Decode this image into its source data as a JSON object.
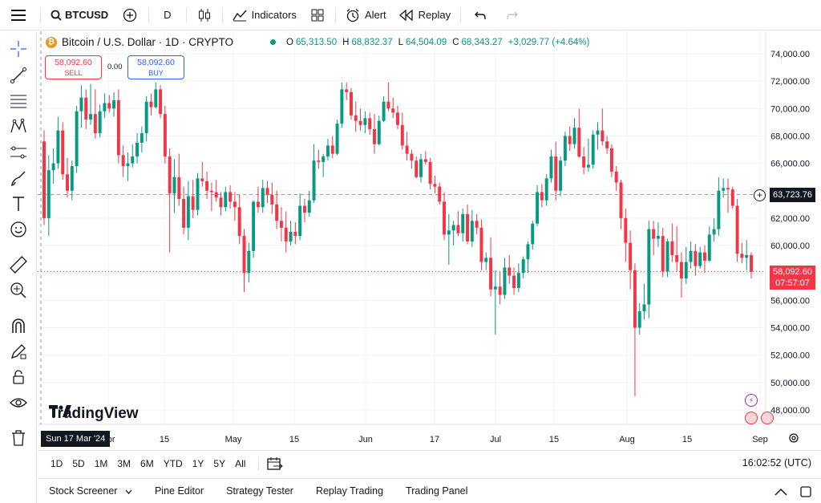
{
  "toolbar": {
    "symbol": "BTCUSD",
    "interval": "D",
    "indicators_label": "Indicators",
    "alert_label": "Alert",
    "replay_label": "Replay"
  },
  "legend": {
    "title": "Bitcoin / U.S. Dollar · 1D · CRYPTO",
    "open_key": "O",
    "open": "65,313.50",
    "high_key": "H",
    "high": "68,832.37",
    "low_key": "L",
    "low": "64,504.09",
    "close_key": "C",
    "close": "68,343.27",
    "change": "+3,029.77 (+4.64%)"
  },
  "trade": {
    "sell_price": "58,092.60",
    "sell_label": "SELL",
    "spread": "0.00",
    "buy_price": "58,092.60",
    "buy_label": "BUY"
  },
  "logo_text": "TradingView",
  "price_axis": {
    "labels": [
      "74,000.00",
      "72,000.00",
      "70,000.00",
      "68,000.00",
      "66,000.00",
      "64,000.00",
      "62,000.00",
      "60,000.00",
      "58,000.00",
      "56,000.00",
      "54,000.00",
      "52,000.00",
      "50,000.00",
      "48,000.00"
    ],
    "crosshair_price": "63,723.76",
    "last_price": "58,092.60",
    "countdown": "07:57:07"
  },
  "time_axis": {
    "labels": [
      "Apr",
      "15",
      "May",
      "15",
      "Jun",
      "17",
      "Jul",
      "15",
      "Aug",
      "15",
      "Sep"
    ],
    "crosshair_date": "Sun 17 Mar '24"
  },
  "timeframes": [
    "1D",
    "5D",
    "1M",
    "3M",
    "6M",
    "YTD",
    "1Y",
    "5Y",
    "All"
  ],
  "clock": "16:02:52 (UTC)",
  "bottom_tabs": [
    "Stock Screener",
    "Pine Editor",
    "Strategy Tester",
    "Replay Trading",
    "Trading Panel"
  ],
  "colors": {
    "up": "#089981",
    "down": "#f23645",
    "accent": "#2962ff"
  },
  "chart_data": {
    "type": "candlestick",
    "title": "Bitcoin / U.S. Dollar · 1D · CRYPTO",
    "ylim": [
      47000,
      75500
    ],
    "x_tick_labels": [
      "Apr",
      "15",
      "May",
      "15",
      "Jun",
      "17",
      "Jul",
      "15",
      "Aug",
      "15",
      "Sep"
    ],
    "candles": [
      [
        67600,
        68400,
        61500,
        62000
      ],
      [
        62000,
        66600,
        60700,
        65500
      ],
      [
        65500,
        67100,
        64500,
        66000
      ],
      [
        66000,
        69400,
        65600,
        68400
      ],
      [
        68400,
        69000,
        64800,
        65200
      ],
      [
        65200,
        66400,
        63500,
        64000
      ],
      [
        64000,
        66200,
        63300,
        65800
      ],
      [
        65800,
        70200,
        65300,
        69800
      ],
      [
        69800,
        71700,
        68600,
        70800
      ],
      [
        70800,
        71400,
        68500,
        69200
      ],
      [
        69200,
        71800,
        68800,
        69600
      ],
      [
        69600,
        71400,
        67800,
        68200
      ],
      [
        68200,
        70300,
        67900,
        69800
      ],
      [
        69800,
        71100,
        69300,
        70400
      ],
      [
        70400,
        71000,
        69700,
        70000
      ],
      [
        70000,
        71200,
        69400,
        70600
      ],
      [
        70600,
        71400,
        66000,
        66600
      ],
      [
        66600,
        67300,
        65000,
        65800
      ],
      [
        65800,
        66800,
        64700,
        66000
      ],
      [
        66000,
        67400,
        65700,
        66500
      ],
      [
        66500,
        68200,
        66000,
        67500
      ],
      [
        67500,
        68700,
        66800,
        68200
      ],
      [
        68200,
        70900,
        67600,
        70500
      ],
      [
        70500,
        71100,
        69500,
        70100
      ],
      [
        70100,
        71900,
        70000,
        71400
      ],
      [
        71400,
        71700,
        69300,
        69600
      ],
      [
        69600,
        70200,
        66000,
        66500
      ],
      [
        66500,
        67100,
        59500,
        63800
      ],
      [
        63800,
        66300,
        62400,
        65000
      ],
      [
        65000,
        66700,
        62900,
        63400
      ],
      [
        63400,
        64300,
        60800,
        61300
      ],
      [
        61300,
        64700,
        60400,
        63600
      ],
      [
        63600,
        64800,
        62000,
        62600
      ],
      [
        62600,
        65300,
        62200,
        64900
      ],
      [
        64900,
        66100,
        64300,
        64700
      ],
      [
        64700,
        65400,
        63400,
        64000
      ],
      [
        64000,
        64600,
        62500,
        63900
      ],
      [
        63900,
        64800,
        63200,
        63500
      ],
      [
        63500,
        63900,
        62200,
        62800
      ],
      [
        62800,
        64300,
        62500,
        63900
      ],
      [
        63900,
        64400,
        62700,
        63200
      ],
      [
        63200,
        63900,
        61800,
        62800
      ],
      [
        62800,
        63700,
        60100,
        60700
      ],
      [
        60700,
        61200,
        56600,
        58000
      ],
      [
        58000,
        60200,
        57300,
        59600
      ],
      [
        59600,
        63300,
        59100,
        63200
      ],
      [
        63200,
        64300,
        62400,
        62800
      ],
      [
        62800,
        64800,
        62400,
        64200
      ],
      [
        64200,
        64700,
        63100,
        63700
      ],
      [
        63700,
        64600,
        62300,
        63000
      ],
      [
        63000,
        64000,
        61200,
        61800
      ],
      [
        61800,
        62800,
        60300,
        61300
      ],
      [
        61300,
        62500,
        59500,
        60300
      ],
      [
        60300,
        61800,
        60000,
        61000
      ],
      [
        61000,
        61700,
        60100,
        60700
      ],
      [
        60700,
        63800,
        60400,
        62900
      ],
      [
        62900,
        63400,
        61700,
        62400
      ],
      [
        62400,
        64000,
        62100,
        63300
      ],
      [
        63300,
        67400,
        63100,
        66200
      ],
      [
        66200,
        67000,
        65600,
        66100
      ],
      [
        66100,
        66700,
        65000,
        66500
      ],
      [
        66500,
        67800,
        66200,
        67300
      ],
      [
        67300,
        68000,
        66400,
        66700
      ],
      [
        66700,
        69200,
        66600,
        68900
      ],
      [
        68900,
        71900,
        68600,
        71400
      ],
      [
        71400,
        71900,
        70600,
        71200
      ],
      [
        71200,
        71500,
        69200,
        69500
      ],
      [
        69500,
        70500,
        68300,
        69100
      ],
      [
        69100,
        70000,
        68400,
        68800
      ],
      [
        68800,
        69800,
        68200,
        69300
      ],
      [
        69300,
        69700,
        68100,
        68500
      ],
      [
        68500,
        69600,
        66700,
        67400
      ],
      [
        67400,
        69500,
        67300,
        69100
      ],
      [
        69100,
        70900,
        69000,
        70500
      ],
      [
        70500,
        71900,
        69800,
        70000
      ],
      [
        70000,
        70800,
        69300,
        69700
      ],
      [
        69700,
        70200,
        68500,
        68800
      ],
      [
        68800,
        69700,
        67000,
        67300
      ],
      [
        67300,
        68300,
        66200,
        66700
      ],
      [
        66700,
        67000,
        65600,
        66200
      ],
      [
        66200,
        66500,
        64900,
        65000
      ],
      [
        65000,
        66700,
        64600,
        66300
      ],
      [
        66300,
        66900,
        65900,
        66100
      ],
      [
        66100,
        66400,
        64100,
        64500
      ],
      [
        64500,
        65100,
        63800,
        64300
      ],
      [
        64300,
        64600,
        63000,
        63200
      ],
      [
        63200,
        63900,
        60400,
        60800
      ],
      [
        60800,
        62300,
        58600,
        61100
      ],
      [
        61100,
        61800,
        60000,
        61500
      ],
      [
        61500,
        62500,
        60700,
        60900
      ],
      [
        60900,
        62700,
        60300,
        62300
      ],
      [
        62300,
        63000,
        60100,
        60300
      ],
      [
        60300,
        62600,
        59900,
        61800
      ],
      [
        61800,
        62300,
        60800,
        61300
      ],
      [
        61300,
        61900,
        58200,
        58800
      ],
      [
        58800,
        59500,
        58200,
        59100
      ],
      [
        59100,
        60600,
        56300,
        56800
      ],
      [
        56800,
        58200,
        53500,
        57000
      ],
      [
        57000,
        58100,
        55700,
        56400
      ],
      [
        56400,
        59100,
        56100,
        58400
      ],
      [
        58400,
        59300,
        57200,
        57800
      ],
      [
        57800,
        58400,
        56400,
        56900
      ],
      [
        56900,
        58700,
        56600,
        58000
      ],
      [
        58000,
        59200,
        57600,
        59000
      ],
      [
        59000,
        60300,
        58000,
        60100
      ],
      [
        60100,
        61800,
        59700,
        61600
      ],
      [
        61600,
        64400,
        61400,
        63900
      ],
      [
        63900,
        64500,
        62800,
        63300
      ],
      [
        63300,
        65200,
        62900,
        64900
      ],
      [
        64900,
        67000,
        64600,
        66500
      ],
      [
        66500,
        67600,
        63300,
        64000
      ],
      [
        64000,
        66500,
        63600,
        66200
      ],
      [
        66200,
        68300,
        65800,
        68000
      ],
      [
        68000,
        68700,
        66900,
        67400
      ],
      [
        67400,
        69300,
        67100,
        68600
      ],
      [
        68600,
        70000,
        66400,
        66500
      ],
      [
        66500,
        67200,
        65200,
        65700
      ],
      [
        65700,
        67800,
        65400,
        65900
      ],
      [
        65900,
        68400,
        65600,
        68100
      ],
      [
        68100,
        69000,
        67000,
        68400
      ],
      [
        68400,
        70000,
        67300,
        67600
      ],
      [
        67600,
        68000,
        66700,
        67100
      ],
      [
        67100,
        67400,
        65000,
        65400
      ],
      [
        65400,
        65800,
        64000,
        64600
      ],
      [
        64600,
        64800,
        61200,
        62000
      ],
      [
        62000,
        62700,
        58800,
        60200
      ],
      [
        60200,
        61100,
        56800,
        58200
      ],
      [
        58200,
        58700,
        49000,
        54000
      ],
      [
        54000,
        55800,
        53500,
        55200
      ],
      [
        55200,
        57200,
        54600,
        55700
      ],
      [
        55700,
        61800,
        54700,
        61200
      ],
      [
        61200,
        61800,
        59300,
        60500
      ],
      [
        60500,
        61700,
        59900,
        60700
      ],
      [
        60700,
        61300,
        57700,
        58100
      ],
      [
        58100,
        60500,
        57700,
        60300
      ],
      [
        60300,
        61600,
        58800,
        59300
      ],
      [
        59300,
        61400,
        58100,
        58800
      ],
      [
        58800,
        59500,
        56200,
        57600
      ],
      [
        57600,
        59900,
        57200,
        58800
      ],
      [
        58800,
        60300,
        58300,
        59600
      ],
      [
        59600,
        60100,
        57800,
        58500
      ],
      [
        58500,
        59900,
        58300,
        59500
      ],
      [
        59500,
        60000,
        58000,
        58900
      ],
      [
        58900,
        61400,
        58800,
        60800
      ],
      [
        60800,
        62000,
        60300,
        61200
      ],
      [
        61200,
        65000,
        60700,
        64000
      ],
      [
        64000,
        64900,
        63500,
        64200
      ],
      [
        64200,
        64900,
        62400,
        64100
      ],
      [
        64100,
        64300,
        62700,
        62900
      ],
      [
        62900,
        63400,
        58800,
        59400
      ],
      [
        59400,
        60200,
        58700,
        59100
      ],
      [
        59100,
        60400,
        58200,
        59300
      ],
      [
        59300,
        59500,
        57600,
        58093
      ]
    ]
  }
}
